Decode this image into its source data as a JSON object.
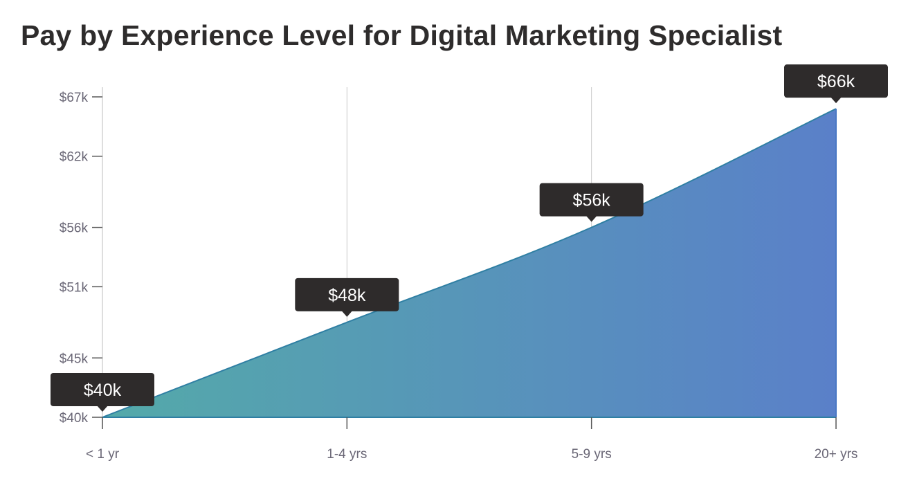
{
  "chart_data": {
    "type": "area",
    "title": "Pay by Experience Level for Digital Marketing Specialist",
    "categories": [
      "< 1 yr",
      "1-4 yrs",
      "5-9 yrs",
      "20+ yrs"
    ],
    "values": [
      40,
      48,
      56,
      66
    ],
    "data_labels": [
      "$40k",
      "$48k",
      "$56k",
      "$66k"
    ],
    "y_ticks": [
      40,
      45,
      51,
      56,
      62,
      67
    ],
    "y_tick_labels": [
      "$40k",
      "$45k",
      "$51k",
      "$56k",
      "$62k",
      "$67k"
    ],
    "ylim": [
      40,
      67
    ],
    "xlabel": "",
    "ylabel": "",
    "grid": "vertical",
    "legend": "none",
    "colors": {
      "gradient_start": "#54aaa9",
      "gradient_end": "#5a80c9",
      "line": "#2f7fa3",
      "tooltip": "#2e2b2b"
    }
  }
}
